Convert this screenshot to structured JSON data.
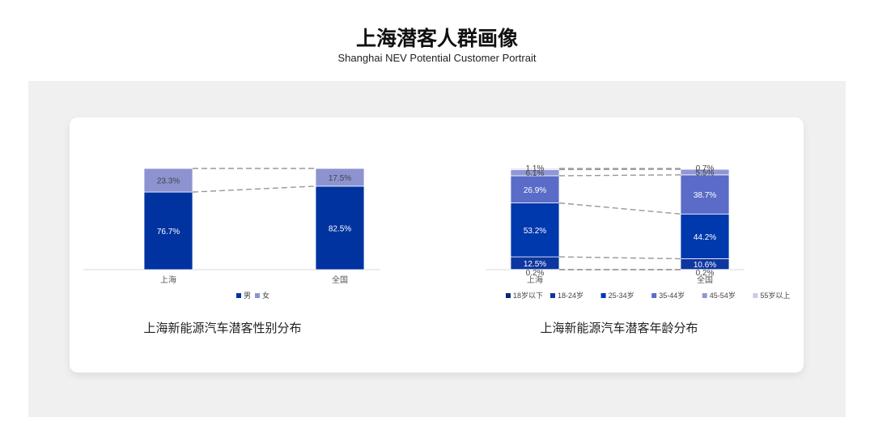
{
  "header": {
    "title": "上海潜客人群画像",
    "subtitle": "Shanghai NEV Potential Customer Portrait"
  },
  "chart_data": [
    {
      "type": "bar",
      "stacked": true,
      "title": "上海新能源汽车潜客性别分布",
      "categories": [
        "上海",
        "全国"
      ],
      "unit": "%",
      "legend_position": "bottom",
      "grid": false,
      "series": [
        {
          "name": "男",
          "values": [
            76.7,
            82.5
          ],
          "color": "#0033a0"
        },
        {
          "name": "女",
          "values": [
            23.3,
            17.5
          ],
          "color": "#8c93d0"
        }
      ]
    },
    {
      "type": "bar",
      "stacked": true,
      "title": "上海新能源汽车潜客年龄分布",
      "categories": [
        "上海",
        "全国"
      ],
      "unit": "%",
      "legend_position": "bottom",
      "grid": false,
      "series": [
        {
          "name": "18岁以下",
          "values": [
            0.2,
            0.2
          ],
          "color": "#0a2680"
        },
        {
          "name": "18-24岁",
          "values": [
            12.5,
            10.6
          ],
          "color": "#0d36a0"
        },
        {
          "name": "25-34岁",
          "values": [
            53.2,
            44.2
          ],
          "color": "#0038ad"
        },
        {
          "name": "35-44岁",
          "values": [
            26.9,
            38.7
          ],
          "color": "#5a6cc8"
        },
        {
          "name": "45-54岁",
          "values": [
            6.1,
            5.5
          ],
          "color": "#9097d4"
        },
        {
          "name": "55岁以上",
          "values": [
            1.1,
            0.7
          ],
          "color": "#c9cce9"
        }
      ]
    }
  ]
}
